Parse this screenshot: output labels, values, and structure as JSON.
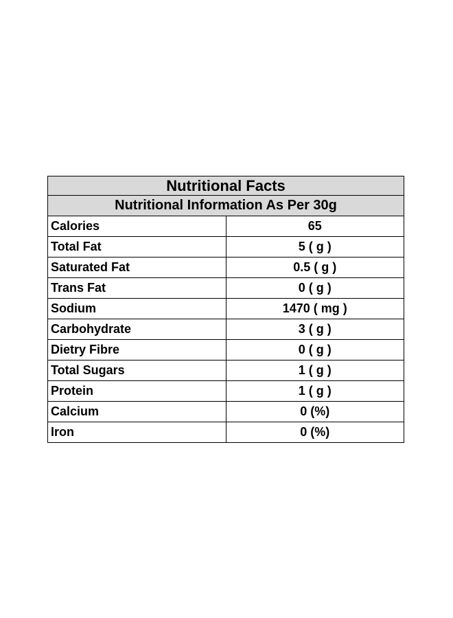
{
  "table": {
    "title": "Nutritional Facts",
    "subtitle": "Nutritional Information As Per  30g",
    "rows": [
      {
        "label": "Calories",
        "value": "65"
      },
      {
        "label": "Total Fat",
        "value": "5 ( g )"
      },
      {
        "label": "Saturated Fat",
        "value": "0.5 ( g )"
      },
      {
        "label": "Trans Fat",
        "value": "0 ( g )"
      },
      {
        "label": "Sodium",
        "value": "1470 ( mg )"
      },
      {
        "label": "Carbohydrate",
        "value": "3 ( g )"
      },
      {
        "label": "Dietry Fibre",
        "value": "0 ( g )"
      },
      {
        "label": "Total Sugars",
        "value": "1 ( g )"
      },
      {
        "label": "Protein",
        "value": "1 ( g )"
      },
      {
        "label": "Calcium",
        "value": "0 (%)"
      },
      {
        "label": "Iron",
        "value": "0 (%)"
      }
    ]
  },
  "colors": {
    "header_background": "#d9d9d9",
    "border": "#000000",
    "text": "#000000"
  }
}
